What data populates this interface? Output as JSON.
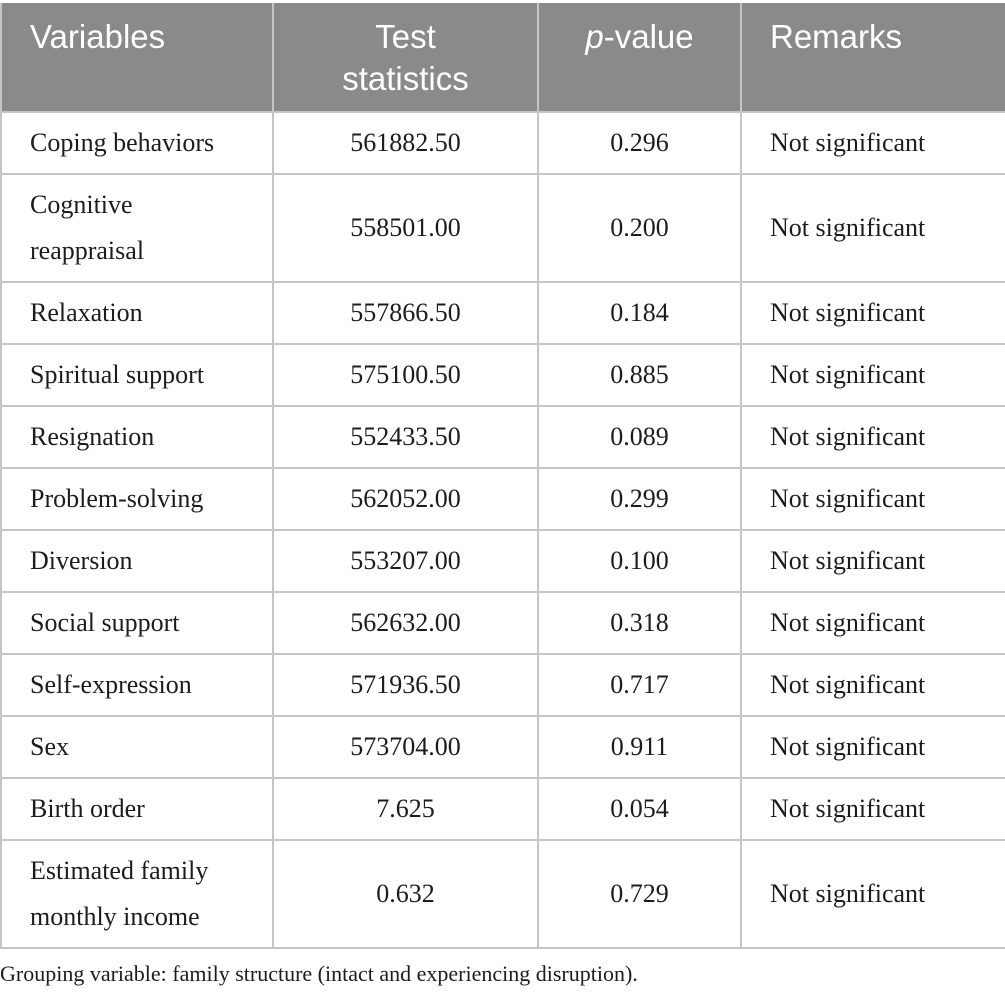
{
  "table": {
    "headers": {
      "variables": "Variables",
      "test_statistics": "Test\nstatistics",
      "p_italic": "p",
      "p_rest": "-value",
      "remarks": "Remarks"
    },
    "rows": [
      {
        "variable": "Coping behaviors",
        "test_statistic": "561882.50",
        "p_value": "0.296",
        "remark": "Not significant"
      },
      {
        "variable": "Cognitive\nreappraisal",
        "test_statistic": "558501.00",
        "p_value": "0.200",
        "remark": "Not significant"
      },
      {
        "variable": "Relaxation",
        "test_statistic": "557866.50",
        "p_value": "0.184",
        "remark": "Not significant"
      },
      {
        "variable": "Spiritual support",
        "test_statistic": "575100.50",
        "p_value": "0.885",
        "remark": "Not significant"
      },
      {
        "variable": "Resignation",
        "test_statistic": "552433.50",
        "p_value": "0.089",
        "remark": "Not significant"
      },
      {
        "variable": "Problem-solving",
        "test_statistic": "562052.00",
        "p_value": "0.299",
        "remark": "Not significant"
      },
      {
        "variable": "Diversion",
        "test_statistic": "553207.00",
        "p_value": "0.100",
        "remark": "Not significant"
      },
      {
        "variable": "Social support",
        "test_statistic": "562632.00",
        "p_value": "0.318",
        "remark": "Not significant"
      },
      {
        "variable": "Self-expression",
        "test_statistic": "571936.50",
        "p_value": "0.717",
        "remark": "Not significant"
      },
      {
        "variable": "Sex",
        "test_statistic": "573704.00",
        "p_value": "0.911",
        "remark": "Not significant"
      },
      {
        "variable": "Birth order",
        "test_statistic": "7.625",
        "p_value": "0.054",
        "remark": "Not significant"
      },
      {
        "variable": "Estimated family\nmonthly income",
        "test_statistic": "0.632",
        "p_value": "0.729",
        "remark": "Not significant"
      }
    ],
    "footnote": "Grouping variable: family structure (intact and experiencing disruption)."
  },
  "colors": {
    "header_bg": "#8a8a8a",
    "header_text": "#ffffff",
    "border": "#c5c5c5",
    "body_text": "#1c1c1c"
  }
}
